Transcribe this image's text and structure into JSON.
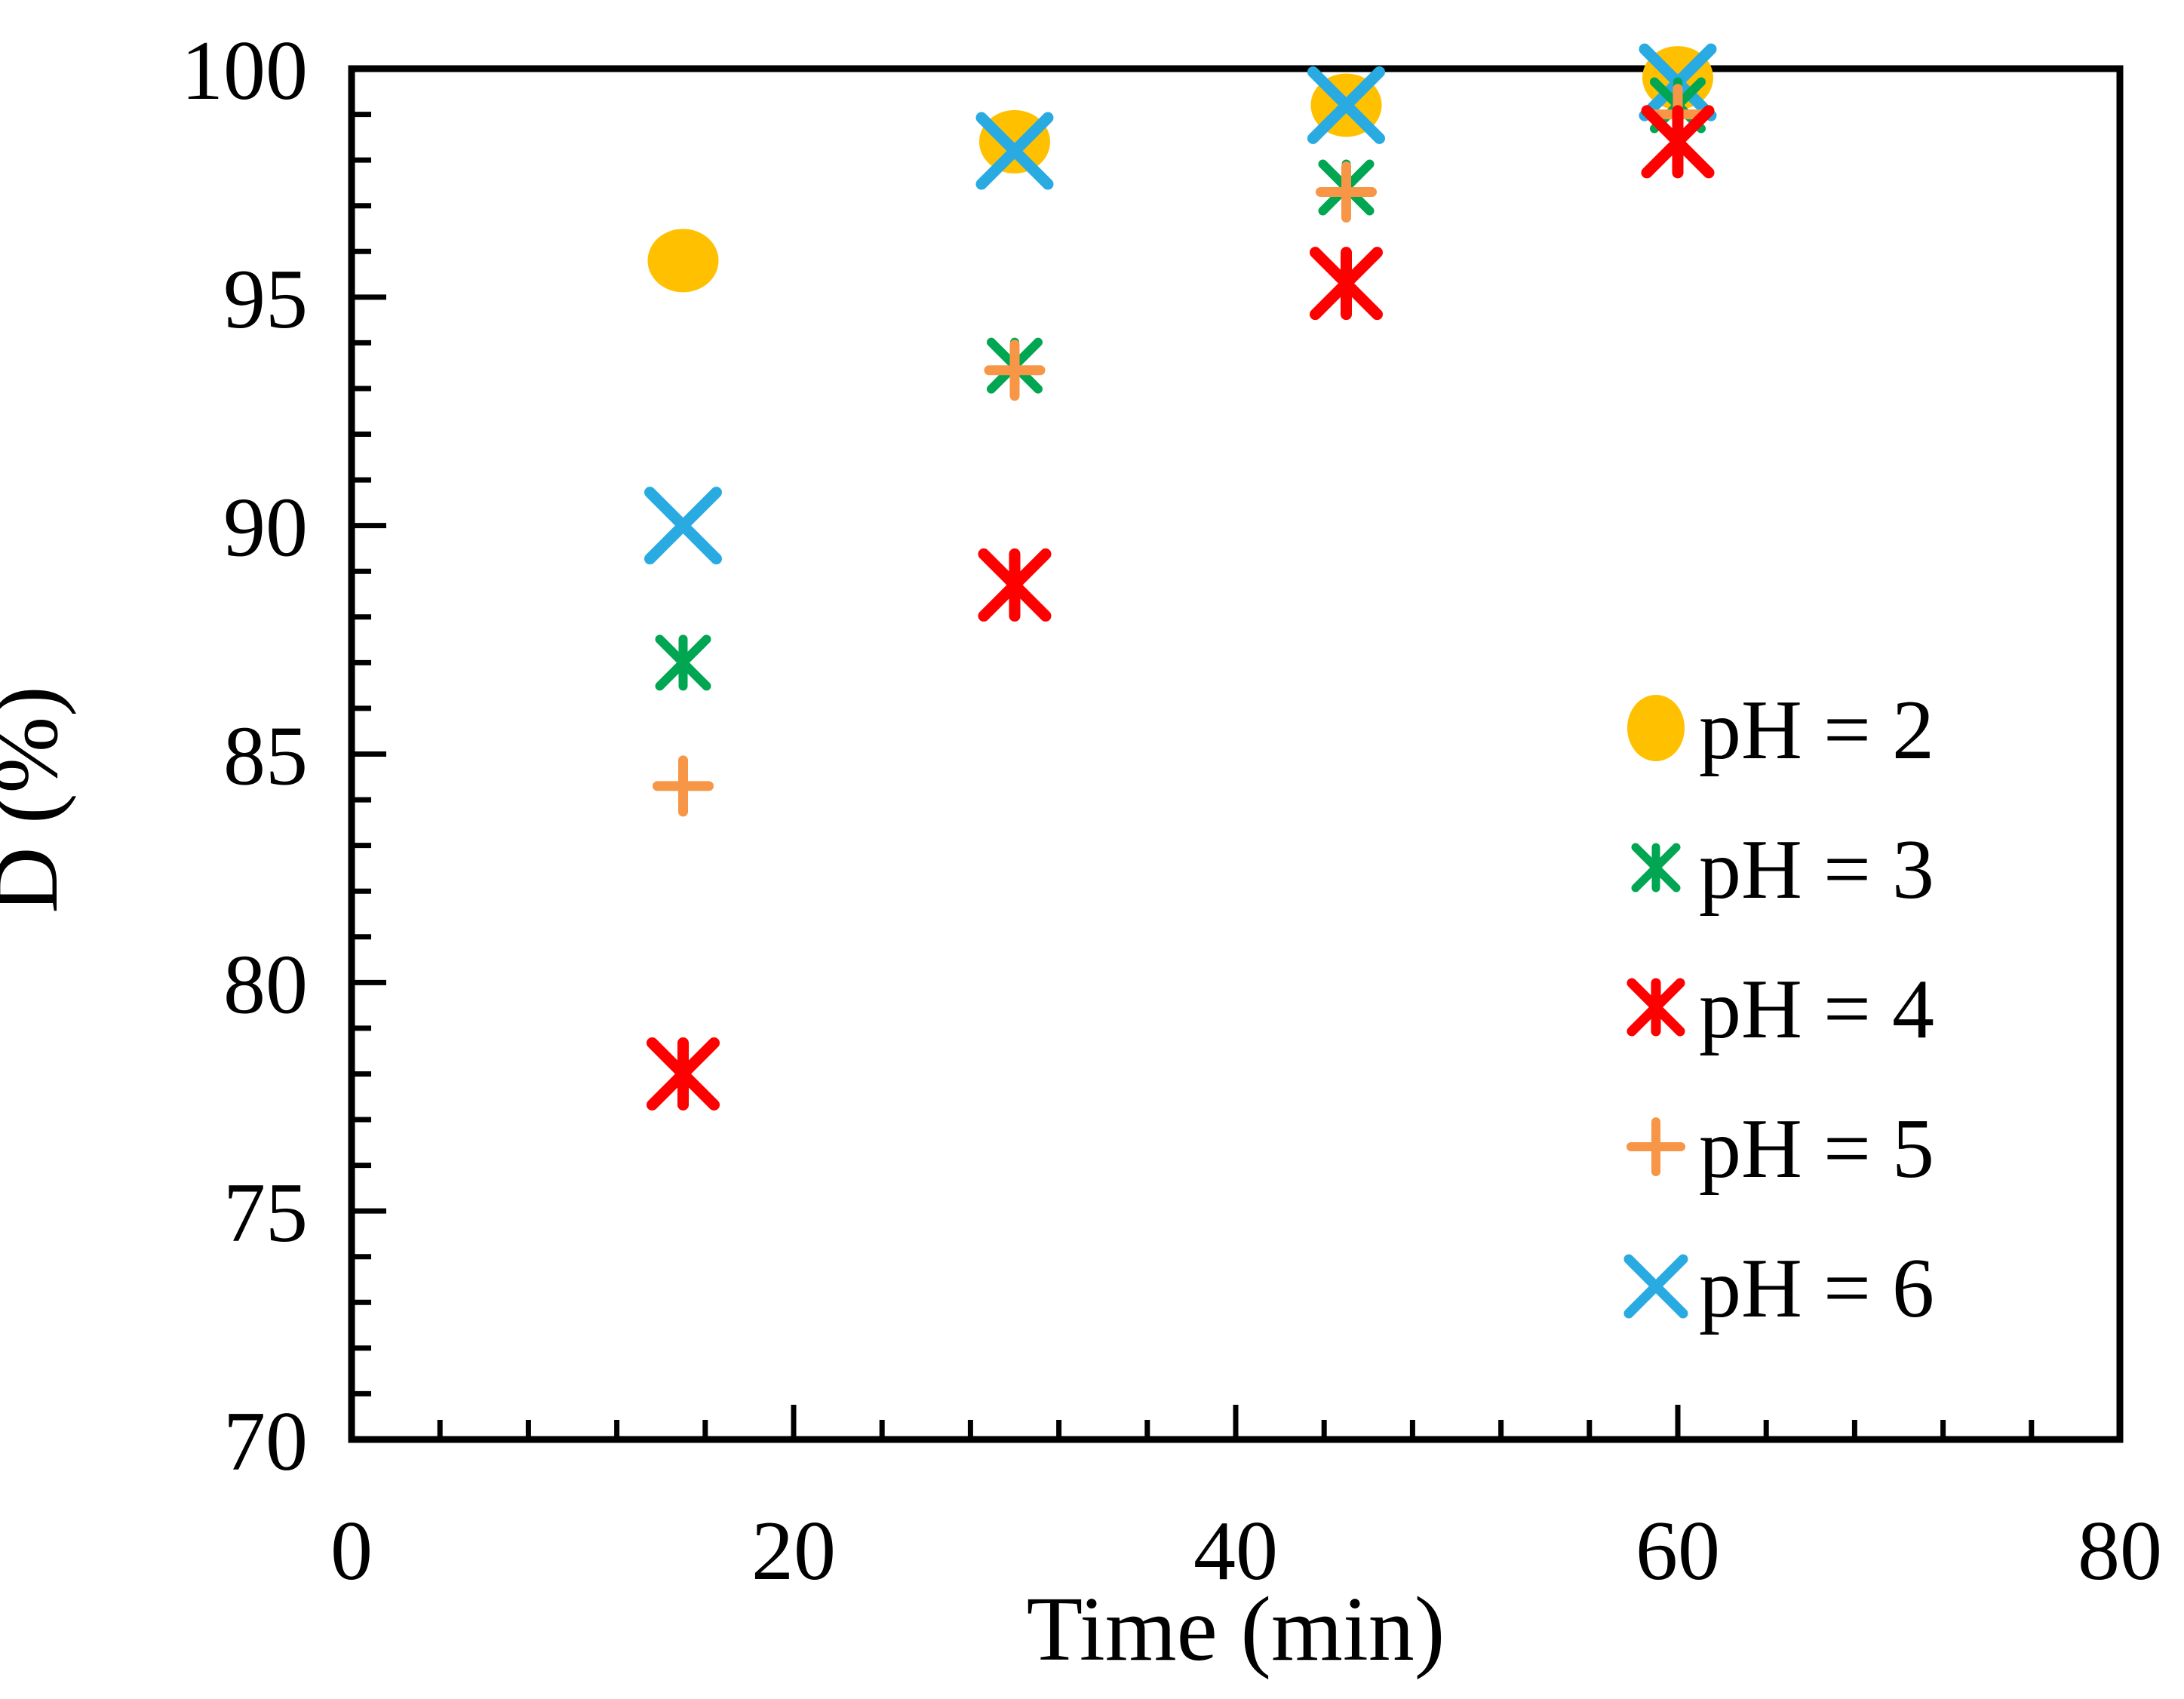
{
  "page": {
    "background_color": "#FFFFFF",
    "title": ""
  },
  "chart_data": {
    "type": "scatter",
    "title": "",
    "xlabel": "Time (min)",
    "ylabel": "D (%)",
    "xlim": [
      0,
      80
    ],
    "ylim": [
      70,
      100
    ],
    "x_major_ticks": [
      0,
      20,
      40,
      60,
      80
    ],
    "x_minor_tick_step": 4,
    "y_major_ticks": [
      70,
      75,
      80,
      85,
      90,
      95,
      100
    ],
    "y_minor_tick_step": 1,
    "grid": "off",
    "frame": "box",
    "tick_direction": "in",
    "legend_position": "inside-right-middle",
    "axis_color": "#000000",
    "x": [
      15,
      30,
      45,
      60
    ],
    "series": [
      {
        "name": "pH = 2",
        "marker": "circle",
        "color": "#FFC000",
        "values": [
          95.8,
          98.4,
          99.2,
          99.8
        ]
      },
      {
        "name": "pH = 3",
        "marker": "asterisk-x",
        "color": "#00A651",
        "values": [
          87.0,
          93.5,
          97.4,
          99.2
        ]
      },
      {
        "name": "pH = 4",
        "marker": "asterisk-x",
        "color": "#FF0000",
        "values": [
          78.0,
          88.7,
          95.3,
          98.4
        ]
      },
      {
        "name": "pH = 5",
        "marker": "plus",
        "color": "#F79646",
        "values": [
          84.3,
          93.4,
          97.3,
          99.0
        ]
      },
      {
        "name": "pH = 6",
        "marker": "x",
        "color": "#29ABE2",
        "values": [
          90.0,
          98.2,
          99.2,
          99.7
        ]
      }
    ]
  }
}
